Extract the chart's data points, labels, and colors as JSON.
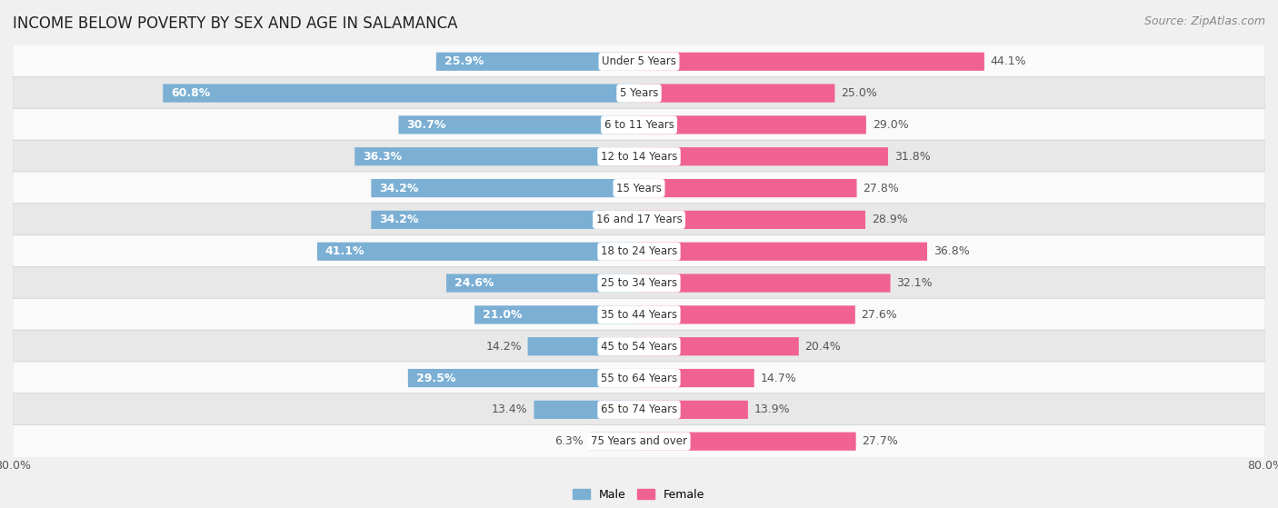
{
  "title": "INCOME BELOW POVERTY BY SEX AND AGE IN SALAMANCA",
  "source": "Source: ZipAtlas.com",
  "categories": [
    "Under 5 Years",
    "5 Years",
    "6 to 11 Years",
    "12 to 14 Years",
    "15 Years",
    "16 and 17 Years",
    "18 to 24 Years",
    "25 to 34 Years",
    "35 to 44 Years",
    "45 to 54 Years",
    "55 to 64 Years",
    "65 to 74 Years",
    "75 Years and over"
  ],
  "male": [
    25.9,
    60.8,
    30.7,
    36.3,
    34.2,
    34.2,
    41.1,
    24.6,
    21.0,
    14.2,
    29.5,
    13.4,
    6.3
  ],
  "female": [
    44.1,
    25.0,
    29.0,
    31.8,
    27.8,
    28.9,
    36.8,
    32.1,
    27.6,
    20.4,
    14.7,
    13.9,
    27.7
  ],
  "male_color": "#7bafd4",
  "female_color": "#f06292",
  "axis_limit": 80.0,
  "bar_height": 0.55,
  "background_color": "#f0f0f0",
  "row_bg_light": "#fafafa",
  "row_bg_dark": "#e8e8e8",
  "title_fontsize": 12,
  "source_fontsize": 9,
  "label_fontsize": 9,
  "category_fontsize": 8.5,
  "legend_male_color": "#7bafd4",
  "legend_female_color": "#f06292"
}
